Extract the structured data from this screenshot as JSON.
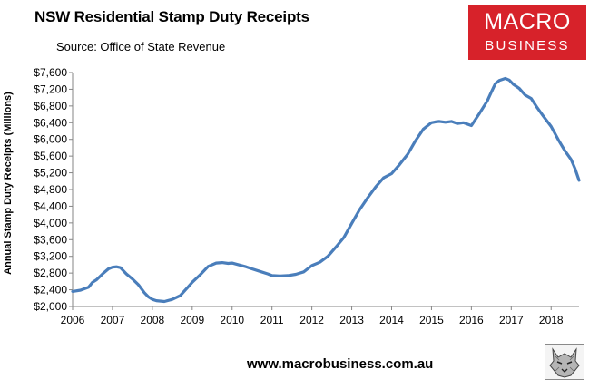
{
  "header": {
    "title": "NSW Residential Stamp Duty Receipts",
    "subtitle": "Source: Office of State Revenue"
  },
  "logo": {
    "line1": "MACRO",
    "line2": "BUSINESS",
    "color": "#d7222a"
  },
  "footer": {
    "website": "www.macrobusiness.com.au",
    "emblem_icon": "wolf-emblem-icon"
  },
  "chart_data": {
    "type": "line",
    "title": "NSW Residential Stamp Duty Receipts",
    "subtitle": "Source: Office of State Revenue",
    "xlabel": "",
    "ylabel": "Annual Stamp Duty Receipts (Millions)",
    "xlim": [
      2006,
      2018.7
    ],
    "ylim": [
      2000,
      7600
    ],
    "x_ticks": [
      2006,
      2007,
      2008,
      2009,
      2010,
      2011,
      2012,
      2013,
      2014,
      2015,
      2016,
      2017,
      2018
    ],
    "x_tick_labels": [
      "2006",
      "2007",
      "2008",
      "2009",
      "2010",
      "2011",
      "2012",
      "2013",
      "2014",
      "2015",
      "2016",
      "2017",
      "2018"
    ],
    "y_ticks": [
      2000,
      2400,
      2800,
      3200,
      3600,
      4000,
      4400,
      4800,
      5200,
      5600,
      6000,
      6400,
      6800,
      7200,
      7600
    ],
    "y_tick_labels": [
      "$2,000",
      "$2,400",
      "$2,800",
      "$3,200",
      "$3,600",
      "$4,000",
      "$4,400",
      "$4,800",
      "$5,200",
      "$5,600",
      "$6,000",
      "$6,400",
      "$6,800",
      "$7,200",
      "$7,600"
    ],
    "grid": false,
    "legend": "none",
    "line_color": "#4a7ebb",
    "series": [
      {
        "x": [
          2006.0,
          2006.2,
          2006.4,
          2006.5,
          2006.6,
          2006.75,
          2006.9,
          2007.0,
          2007.1,
          2007.2,
          2007.35,
          2007.5,
          2007.65,
          2007.8,
          2007.9,
          2008.0,
          2008.1,
          2008.3,
          2008.5,
          2008.7,
          2008.9,
          2009.0,
          2009.2,
          2009.4,
          2009.6,
          2009.75,
          2009.9,
          2010.0,
          2010.2,
          2010.35,
          2010.5,
          2010.7,
          2010.9,
          2011.0,
          2011.2,
          2011.4,
          2011.6,
          2011.8,
          2012.0,
          2012.2,
          2012.4,
          2012.6,
          2012.8,
          2013.0,
          2013.2,
          2013.4,
          2013.6,
          2013.8,
          2014.0,
          2014.2,
          2014.4,
          2014.6,
          2014.8,
          2015.0,
          2015.1,
          2015.2,
          2015.35,
          2015.5,
          2015.65,
          2015.8,
          2016.0,
          2016.2,
          2016.4,
          2016.5,
          2016.6,
          2016.7,
          2016.85,
          2016.95,
          2017.05,
          2017.2,
          2017.35,
          2017.5,
          2017.65,
          2017.8,
          2018.0,
          2018.2,
          2018.35,
          2018.5,
          2018.6,
          2018.7
        ],
        "y": [
          2360,
          2390,
          2460,
          2580,
          2640,
          2780,
          2900,
          2940,
          2950,
          2930,
          2780,
          2660,
          2520,
          2330,
          2230,
          2170,
          2140,
          2120,
          2170,
          2260,
          2470,
          2580,
          2760,
          2960,
          3040,
          3050,
          3030,
          3040,
          2990,
          2950,
          2900,
          2840,
          2780,
          2740,
          2730,
          2740,
          2770,
          2830,
          2980,
          3060,
          3200,
          3420,
          3650,
          3990,
          4320,
          4600,
          4860,
          5080,
          5180,
          5400,
          5640,
          5970,
          6250,
          6400,
          6420,
          6430,
          6410,
          6430,
          6380,
          6400,
          6330,
          6620,
          6920,
          7130,
          7330,
          7410,
          7460,
          7420,
          7320,
          7220,
          7060,
          6980,
          6760,
          6560,
          6310,
          5960,
          5720,
          5520,
          5300,
          5020
        ]
      }
    ]
  }
}
